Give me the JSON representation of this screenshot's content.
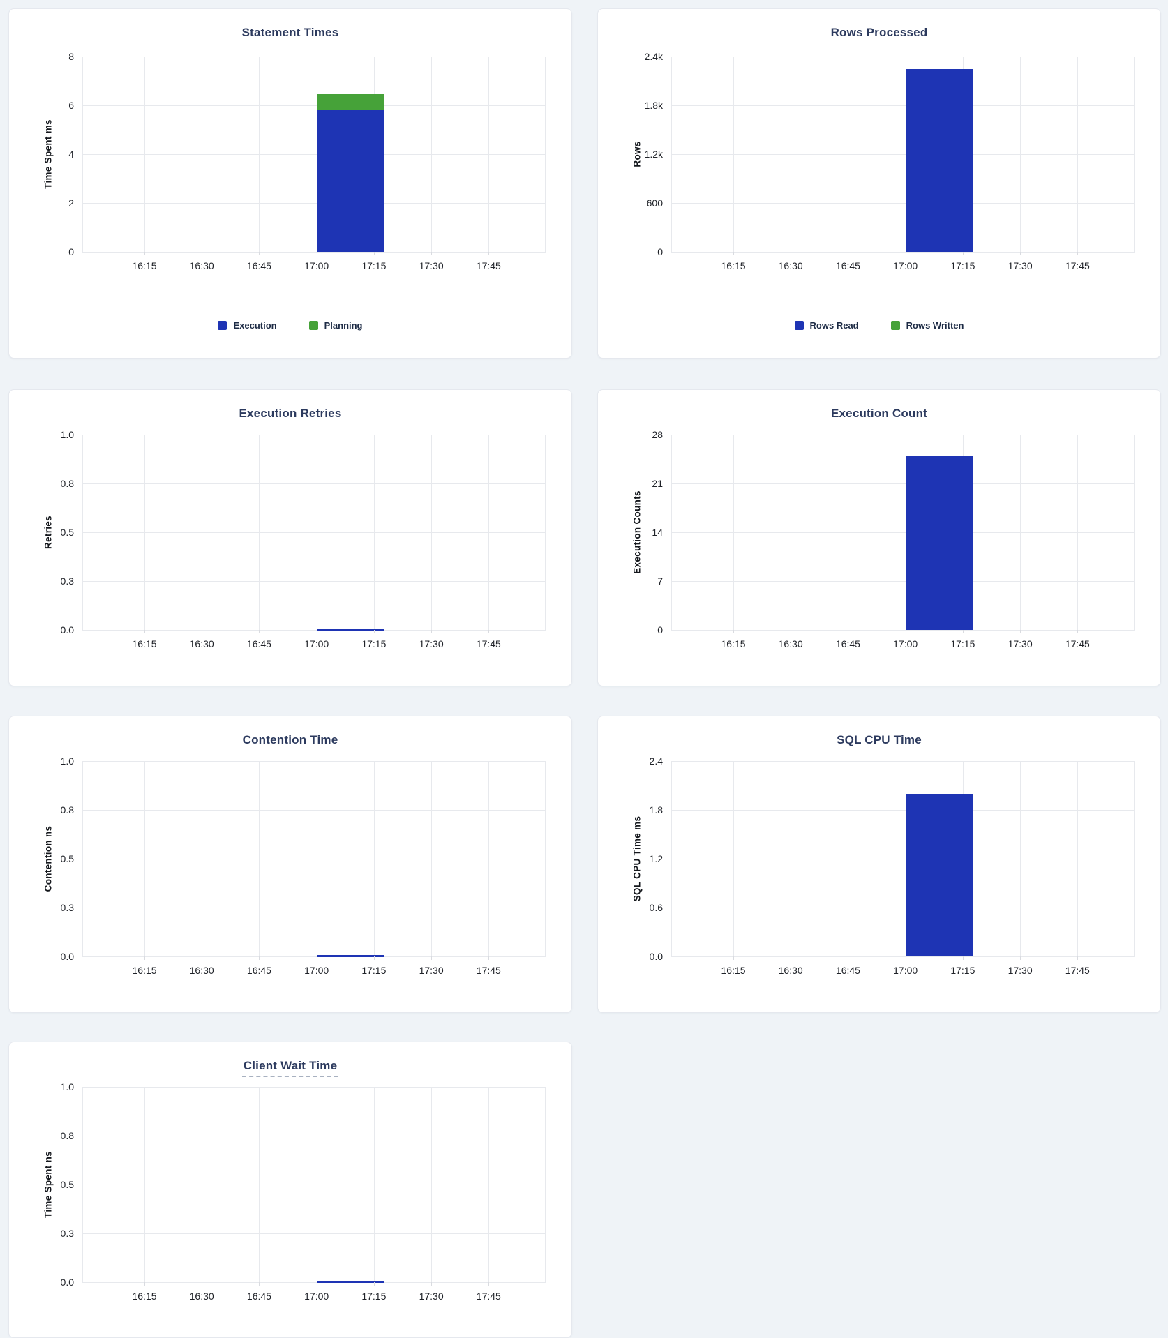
{
  "page": {
    "background_color": "#eff3f7",
    "card_background": "#ffffff"
  },
  "colors": {
    "bar_blue": "#1e34b4",
    "bar_green": "#46a239",
    "title_text": "#2c3a5e",
    "grid_line": "#e7e9ed",
    "tick_text": "#202329",
    "legend_text": "#1d2b45"
  },
  "x_ticks": [
    "16:15",
    "16:30",
    "16:45",
    "17:00",
    "17:15",
    "17:30",
    "17:45"
  ],
  "x_axis": {
    "range_start": "16:00",
    "range_end": "18:00",
    "bar_bucket_start": "17:00",
    "bar_bucket_end": "17:17"
  },
  "chart_data": [
    {
      "id": "statement-times",
      "type": "bar",
      "title": "Statement Times",
      "ylabel": "Time Spent ms",
      "ymax": 8,
      "ylim": [
        0,
        8
      ],
      "yticks": [
        "8",
        "6",
        "4",
        "2",
        "0"
      ],
      "grid": "on",
      "stacked": true,
      "legend_position": "bottom",
      "series": [
        {
          "name": "Execution",
          "color_key": "bar_blue",
          "x": "17:00",
          "value": 5.8
        },
        {
          "name": "Planning",
          "color_key": "bar_green",
          "x": "17:00",
          "value": 0.65
        }
      ],
      "legend": [
        {
          "label": "Execution",
          "color_key": "bar_blue"
        },
        {
          "label": "Planning",
          "color_key": "bar_green"
        }
      ],
      "title_dashed_underline": false
    },
    {
      "id": "rows-processed",
      "type": "bar",
      "title": "Rows Processed",
      "ylabel": "Rows",
      "ymax": 2400,
      "ylim": [
        0,
        2400
      ],
      "yticks": [
        "2.4k",
        "1.8k",
        "1.2k",
        "600",
        "0"
      ],
      "grid": "on",
      "stacked": true,
      "legend_position": "bottom",
      "series": [
        {
          "name": "Rows Read",
          "color_key": "bar_blue",
          "x": "17:00",
          "value": 2250
        },
        {
          "name": "Rows Written",
          "color_key": "bar_green",
          "x": "17:00",
          "value": 0
        }
      ],
      "legend": [
        {
          "label": "Rows Read",
          "color_key": "bar_blue"
        },
        {
          "label": "Rows Written",
          "color_key": "bar_green"
        }
      ],
      "title_dashed_underline": false
    },
    {
      "id": "execution-retries",
      "type": "bar",
      "title": "Execution Retries",
      "ylabel": "Retries",
      "ymax": 1,
      "ylim": [
        0,
        1
      ],
      "yticks": [
        "1.0",
        "0.8",
        "0.5",
        "0.3",
        "0.0"
      ],
      "grid": "on",
      "stacked": false,
      "legend_position": "none",
      "series": [
        {
          "name": "Retries",
          "color_key": "bar_blue",
          "x": "17:00",
          "value": 0
        }
      ],
      "legend": [],
      "title_dashed_underline": false
    },
    {
      "id": "execution-count",
      "type": "bar",
      "title": "Execution Count",
      "ylabel": "Execution Counts",
      "ymax": 28,
      "ylim": [
        0,
        28
      ],
      "yticks": [
        "28",
        "21",
        "14",
        "7",
        "0"
      ],
      "grid": "on",
      "stacked": false,
      "legend_position": "none",
      "series": [
        {
          "name": "Execution Count",
          "color_key": "bar_blue",
          "x": "17:00",
          "value": 25
        }
      ],
      "legend": [],
      "title_dashed_underline": false
    },
    {
      "id": "contention-time",
      "type": "bar",
      "title": "Contention Time",
      "ylabel": "Contention ns",
      "ymax": 1,
      "ylim": [
        0,
        1
      ],
      "yticks": [
        "1.0",
        "0.8",
        "0.5",
        "0.3",
        "0.0"
      ],
      "grid": "on",
      "stacked": false,
      "legend_position": "none",
      "series": [
        {
          "name": "Contention",
          "color_key": "bar_blue",
          "x": "17:00",
          "value": 0
        }
      ],
      "legend": [],
      "title_dashed_underline": false
    },
    {
      "id": "sql-cpu-time",
      "type": "bar",
      "title": "SQL CPU Time",
      "ylabel": "SQL CPU Time ms",
      "ymax": 2.4,
      "ylim": [
        0,
        2.4
      ],
      "yticks": [
        "2.4",
        "1.8",
        "1.2",
        "0.6",
        "0.0"
      ],
      "grid": "on",
      "stacked": false,
      "legend_position": "none",
      "series": [
        {
          "name": "SQL CPU Time",
          "color_key": "bar_blue",
          "x": "17:00",
          "value": 2.0
        }
      ],
      "legend": [],
      "title_dashed_underline": false
    },
    {
      "id": "client-wait-time",
      "type": "bar",
      "title": "Client Wait Time",
      "ylabel": "Time Spent ns",
      "ymax": 1,
      "ylim": [
        0,
        1
      ],
      "yticks": [
        "1.0",
        "0.8",
        "0.5",
        "0.3",
        "0.0"
      ],
      "grid": "on",
      "stacked": false,
      "legend_position": "none",
      "series": [
        {
          "name": "Client Wait",
          "color_key": "bar_blue",
          "x": "17:00",
          "value": 0
        }
      ],
      "legend": [],
      "title_dashed_underline": true
    }
  ]
}
